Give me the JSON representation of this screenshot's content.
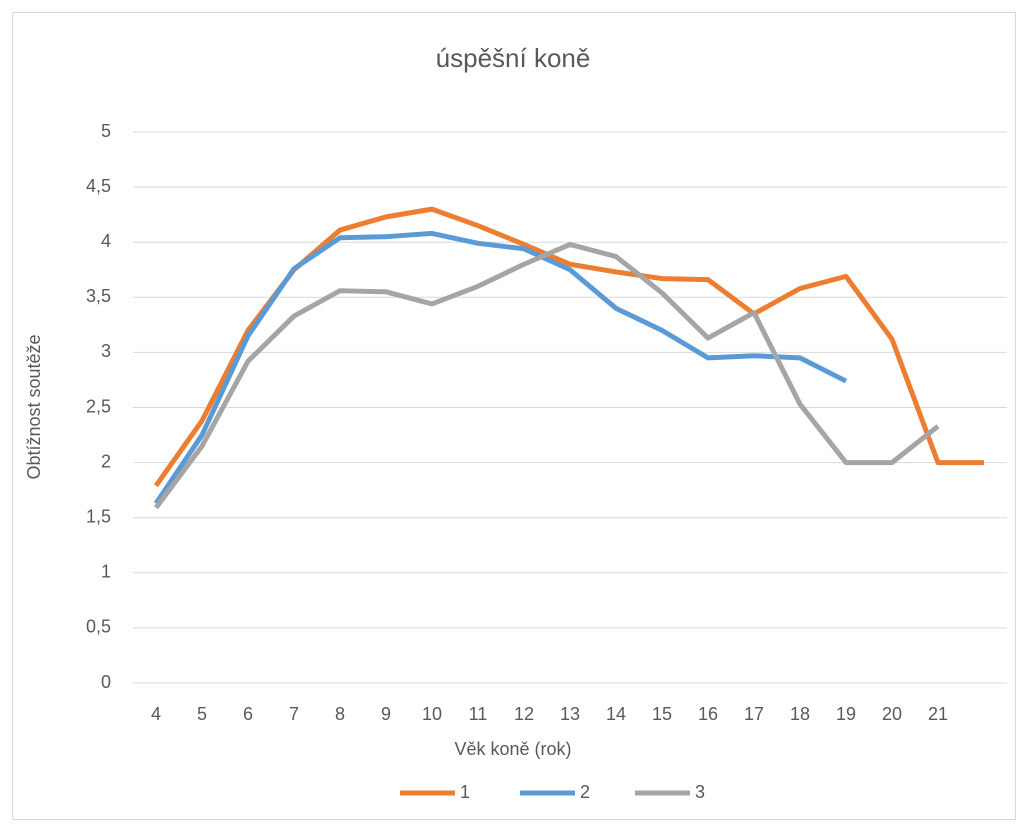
{
  "chart_data": {
    "type": "line",
    "title": "úspěšní koně",
    "x_label": "Věk koně (rok)",
    "y_label": "Obtížnost soutěže",
    "categories": [
      "4",
      "5",
      "6",
      "7",
      "8",
      "9",
      "10",
      "11",
      "12",
      "13",
      "14",
      "15",
      "16",
      "17",
      "18",
      "19",
      "20",
      "21",
      null
    ],
    "series": [
      {
        "name": "1",
        "color": "#ed7d31",
        "values": [
          1.79,
          2.38,
          3.2,
          3.75,
          4.11,
          4.23,
          4.3,
          4.15,
          3.98,
          3.8,
          3.73,
          3.67,
          3.66,
          3.35,
          3.58,
          3.69,
          3.12,
          2.0,
          2.0
        ]
      },
      {
        "name": "2",
        "color": "#5b9bd5",
        "values": [
          1.63,
          2.25,
          3.15,
          3.76,
          4.04,
          4.05,
          4.08,
          3.99,
          3.94,
          3.75,
          3.4,
          3.2,
          2.95,
          2.97,
          2.95,
          2.74,
          null,
          null,
          null
        ]
      },
      {
        "name": "3",
        "color": "#a5a5a5",
        "values": [
          1.59,
          2.15,
          2.92,
          3.33,
          3.56,
          3.55,
          3.44,
          3.6,
          3.8,
          3.98,
          3.87,
          3.54,
          3.13,
          3.36,
          2.53,
          2.0,
          2.0,
          2.33,
          null
        ]
      }
    ],
    "ylim": [
      0,
      5
    ],
    "yticks": [
      0,
      {
        "value": 0.5,
        "label": "0,5"
      },
      1,
      {
        "value": 1.5,
        "label": "1,5"
      },
      2,
      {
        "value": 2.5,
        "label": "2,5"
      },
      3,
      {
        "value": 3.5,
        "label": "3,5"
      },
      4,
      {
        "value": 4.5,
        "label": "4,5"
      },
      5
    ],
    "grid": true,
    "legend": "bottom"
  }
}
